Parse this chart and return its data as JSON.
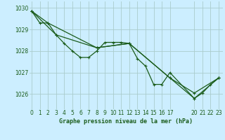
{
  "title": "Graphe pression niveau de la mer (hPa)",
  "bg_color": "#cceeff",
  "grid_color": "#aacccc",
  "line_color": "#1a5c1a",
  "x_ticks": [
    0,
    1,
    2,
    3,
    4,
    5,
    6,
    7,
    8,
    9,
    10,
    11,
    12,
    13,
    14,
    15,
    16,
    17,
    20,
    21,
    22,
    23
  ],
  "y_ticks": [
    1026,
    1027,
    1028,
    1029,
    1030
  ],
  "ylim": [
    1025.3,
    1030.3
  ],
  "xlim": [
    -0.3,
    23.5
  ],
  "series": [
    {
      "x": [
        0,
        1,
        2,
        3,
        4,
        5,
        6,
        7,
        8,
        9,
        10,
        11,
        12,
        13,
        14,
        15,
        16,
        17,
        20,
        21,
        22,
        23
      ],
      "y": [
        1029.85,
        1029.3,
        1029.3,
        1028.75,
        1028.35,
        1028.0,
        1027.7,
        1027.7,
        1028.0,
        1028.4,
        1028.4,
        1028.4,
        1028.35,
        1027.65,
        1027.3,
        1026.45,
        1026.45,
        1027.0,
        1025.8,
        1026.05,
        1026.45,
        1026.75
      ]
    },
    {
      "x": [
        0,
        2,
        8,
        12,
        17,
        20,
        23
      ],
      "y": [
        1029.85,
        1029.3,
        1028.15,
        1028.35,
        1026.75,
        1025.8,
        1026.75
      ]
    },
    {
      "x": [
        0,
        3,
        8,
        12,
        17,
        20,
        23
      ],
      "y": [
        1029.85,
        1028.75,
        1028.15,
        1028.35,
        1026.75,
        1026.05,
        1026.75
      ]
    }
  ],
  "title_fontsize": 6.0,
  "tick_fontsize": 5.5,
  "linewidth": 0.9,
  "markersize": 3.0
}
